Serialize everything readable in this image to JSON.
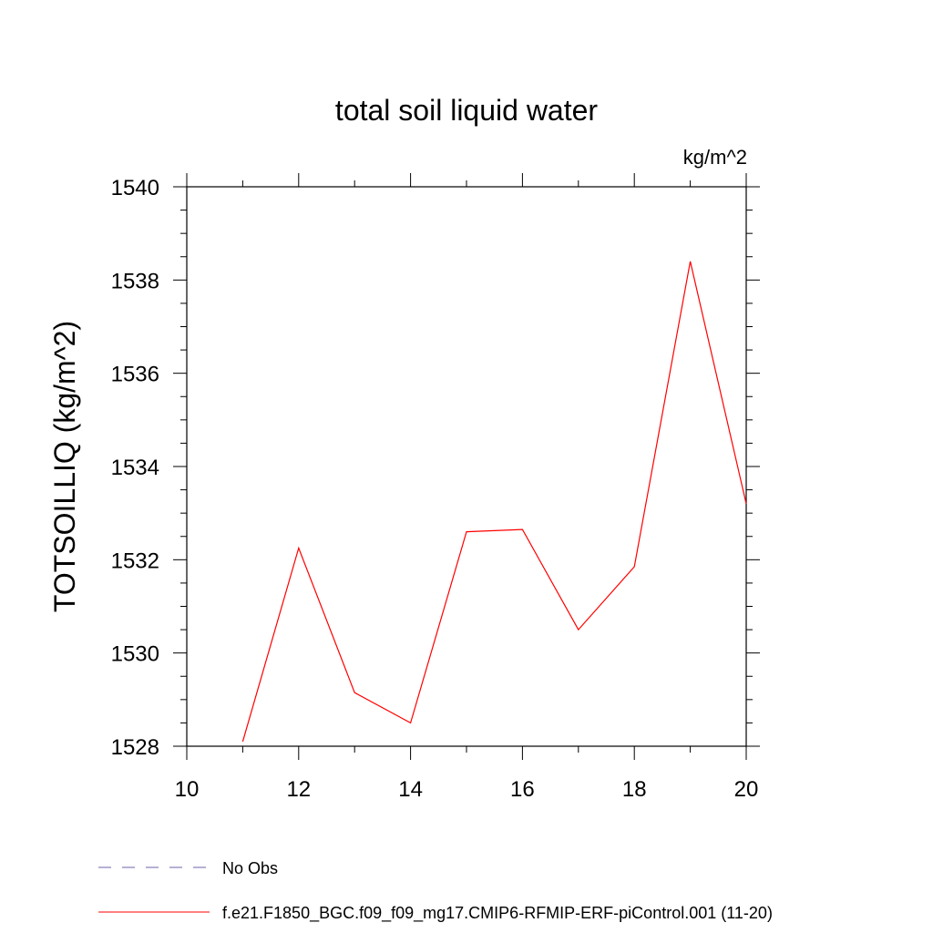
{
  "chart_data": {
    "type": "line",
    "title": "total soil liquid water",
    "units_label": "kg/m^2",
    "xlabel": "",
    "ylabel": "TOTSOILLIQ  (kg/m^2)",
    "xlim": [
      10,
      20
    ],
    "ylim": [
      1528,
      1540
    ],
    "x_ticks": [
      10,
      12,
      14,
      16,
      18,
      20
    ],
    "y_ticks": [
      1528,
      1530,
      1532,
      1534,
      1536,
      1538,
      1540
    ],
    "x_minor_step": 1,
    "y_minor_step": 0.5,
    "grid": false,
    "legend_position": "bottom",
    "series": [
      {
        "name": "f.e21.F1850_BGC.f09_f09_mg17.CMIP6-RFMIP-ERF-piControl.001 (11-20)",
        "color": "#ff0000",
        "style": "solid",
        "x": [
          11,
          12,
          13,
          14,
          15,
          16,
          17,
          18,
          19,
          20
        ],
        "y": [
          1528.1,
          1532.25,
          1529.15,
          1528.5,
          1532.6,
          1532.65,
          1530.5,
          1531.85,
          1538.4,
          1533.2
        ]
      }
    ],
    "legend": [
      {
        "label": "No Obs",
        "color": "#7060a8",
        "style": "dashed"
      },
      {
        "label": "f.e21.F1850_BGC.f09_f09_mg17.CMIP6-RFMIP-ERF-piControl.001 (11-20)",
        "color": "#ff0000",
        "style": "solid"
      }
    ]
  }
}
